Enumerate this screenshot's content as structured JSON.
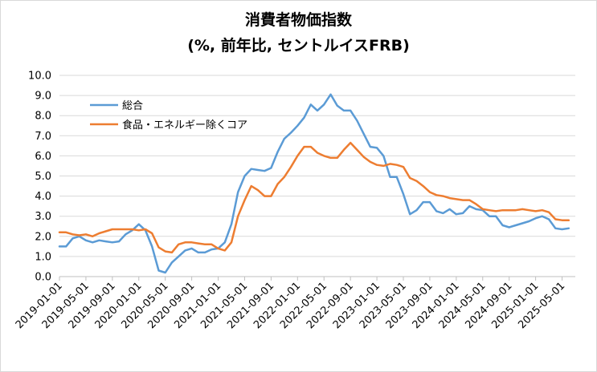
{
  "chart_data": {
    "type": "line",
    "title": "消費者物価指数",
    "subtitle": "(%, 前年比, セントルイスFRB)",
    "xlabel": "",
    "ylabel": "",
    "ylim": [
      0,
      10
    ],
    "yticks": [
      "0.0",
      "1.0",
      "2.0",
      "3.0",
      "4.0",
      "5.0",
      "6.0",
      "7.0",
      "8.0",
      "9.0",
      "10.0"
    ],
    "x_tick_labels": [
      "2019-01-01",
      "2019-05-01",
      "2019-09-01",
      "2020-01-01",
      "2020-05-01",
      "2020-09-01",
      "2021-01-01",
      "2021-05-01",
      "2021-09-01",
      "2022-01-01",
      "2022-05-01",
      "2022-09-01",
      "2023-01-01",
      "2023-05-01",
      "2023-09-01",
      "2024-01-01",
      "2024-05-01",
      "2024-09-01",
      "2025-01-01",
      "2025-05-01"
    ],
    "x_start": "2019-01",
    "x_end": "2025-06",
    "grid": "horizontal",
    "legend_position": "top-left",
    "series": [
      {
        "name": "総合",
        "color": "#5b9bd5",
        "values": [
          1.5,
          1.5,
          1.9,
          2.0,
          1.8,
          1.7,
          1.8,
          1.75,
          1.7,
          1.75,
          2.1,
          2.3,
          2.6,
          2.3,
          1.5,
          0.3,
          0.2,
          0.7,
          1.0,
          1.3,
          1.4,
          1.2,
          1.2,
          1.35,
          1.4,
          1.7,
          2.6,
          4.2,
          5.0,
          5.35,
          5.3,
          5.25,
          5.4,
          6.2,
          6.85,
          7.15,
          7.5,
          7.9,
          8.55,
          8.25,
          8.55,
          9.05,
          8.5,
          8.25,
          8.25,
          7.75,
          7.1,
          6.45,
          6.4,
          6.0,
          4.95,
          4.95,
          4.1,
          3.1,
          3.3,
          3.7,
          3.7,
          3.25,
          3.15,
          3.35,
          3.1,
          3.15,
          3.5,
          3.35,
          3.3,
          3.0,
          3.0,
          2.55,
          2.45,
          2.55,
          2.65,
          2.75,
          2.9,
          3.0,
          2.85,
          2.4,
          2.35,
          2.4
        ]
      },
      {
        "name": "食品・エネルギー除くコア",
        "color": "#ed7d31",
        "values": [
          2.2,
          2.2,
          2.1,
          2.05,
          2.1,
          2.0,
          2.15,
          2.25,
          2.35,
          2.35,
          2.35,
          2.35,
          2.3,
          2.35,
          2.15,
          1.45,
          1.25,
          1.2,
          1.6,
          1.7,
          1.7,
          1.65,
          1.6,
          1.6,
          1.4,
          1.3,
          1.7,
          3.0,
          3.8,
          4.5,
          4.3,
          4.0,
          4.0,
          4.6,
          4.95,
          5.45,
          6.0,
          6.45,
          6.45,
          6.15,
          6.0,
          5.9,
          5.9,
          6.3,
          6.65,
          6.3,
          5.95,
          5.7,
          5.55,
          5.5,
          5.6,
          5.55,
          5.45,
          4.9,
          4.75,
          4.5,
          4.2,
          4.05,
          4.0,
          3.9,
          3.85,
          3.8,
          3.8,
          3.6,
          3.35,
          3.3,
          3.25,
          3.3,
          3.3,
          3.3,
          3.35,
          3.3,
          3.25,
          3.3,
          3.2,
          2.85,
          2.8,
          2.8
        ]
      }
    ]
  }
}
